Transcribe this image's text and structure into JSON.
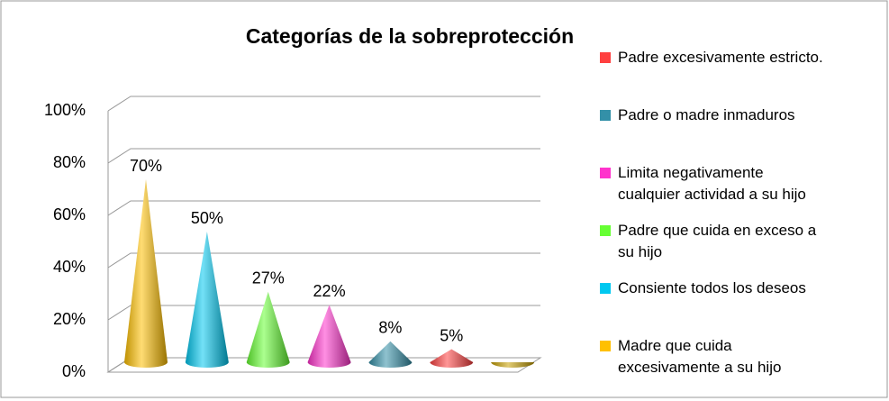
{
  "chart_data": {
    "type": "cone",
    "title": "Categorías de la sobreprotección",
    "categories": [
      "Madre que cuida excesivamente a su hijo",
      "Consiente todos los deseos",
      "Padre que cuida en exceso a su hijo",
      "Limita negativamente cualquier actividad a su hijo",
      "Padre o madre inmaduros",
      "Padre excesivamente estricto.",
      null
    ],
    "values": [
      70,
      50,
      27,
      22,
      8,
      5,
      0
    ],
    "value_labels": [
      "70%",
      "50%",
      "27%",
      "22%",
      "8%",
      "5%",
      null
    ],
    "colors": [
      "#ffc000",
      "#00c8f0",
      "#66ff33",
      "#ff33cc",
      "#3390a8",
      "#ff4040",
      "#c8a000"
    ],
    "ylim": [
      0,
      100
    ],
    "yticks": [
      {
        "value": 0,
        "label": "0%"
      },
      {
        "value": 20,
        "label": "20%"
      },
      {
        "value": 40,
        "label": "40%"
      },
      {
        "value": 60,
        "label": "60%"
      },
      {
        "value": 80,
        "label": "80%"
      },
      {
        "value": 100,
        "label": "100%"
      }
    ],
    "grid": true
  }
}
